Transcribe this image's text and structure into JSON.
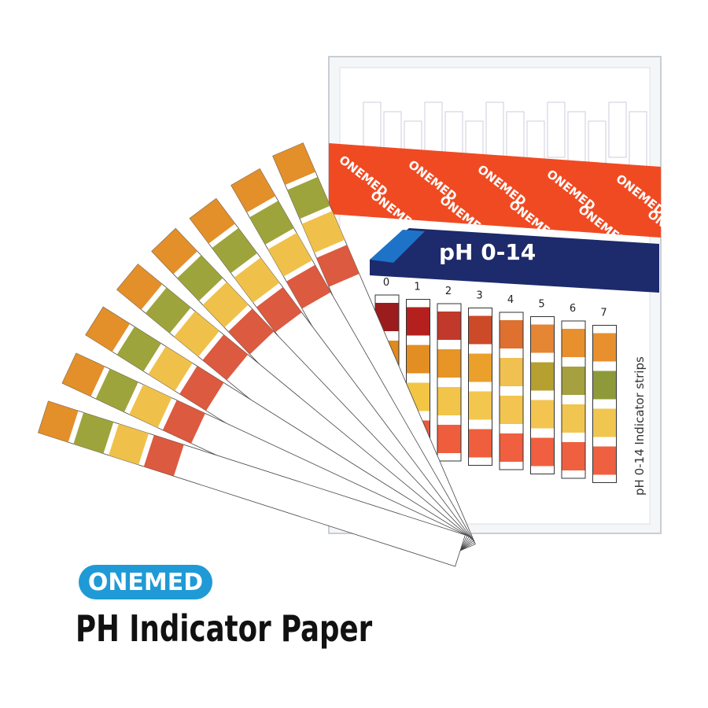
{
  "brand": "ONEMED",
  "title": "PH Indicator Paper",
  "box": {
    "label": "pH 0-14",
    "band_text": "ONEMED",
    "side_text": "pH 0-14  Indicator strips",
    "scale_labels": [
      "0",
      "1",
      "2",
      "3",
      "4",
      "5",
      "6",
      "7"
    ],
    "scale_colors": [
      [
        "#9b1c1c",
        "#e08a1e",
        "#f0c040",
        "#e85a3a"
      ],
      [
        "#b3201e",
        "#e28e22",
        "#f2c545",
        "#e8583a"
      ],
      [
        "#c0392b",
        "#e69526",
        "#f2c54a",
        "#ee5e3c"
      ],
      [
        "#cc4a28",
        "#eba02c",
        "#f3c64d",
        "#ef5f3e"
      ],
      [
        "#de7030",
        "#f0c050",
        "#f3c550",
        "#f05f40"
      ],
      [
        "#e58634",
        "#b5a030",
        "#f3c550",
        "#f05f40"
      ],
      [
        "#e8902e",
        "#a5a040",
        "#f0c650",
        "#ef6040"
      ],
      [
        "#e8902e",
        "#8e9a3a",
        "#f0c650",
        "#ef6040"
      ]
    ]
  },
  "strip_colors": [
    "#e38f2a",
    "#9ea43c",
    "#f0c14a",
    "#dc5a40"
  ],
  "colors": {
    "brand_blue": "#1f9ad6",
    "band_red": "#f04a22",
    "label_navy": "#1d2a6b"
  }
}
